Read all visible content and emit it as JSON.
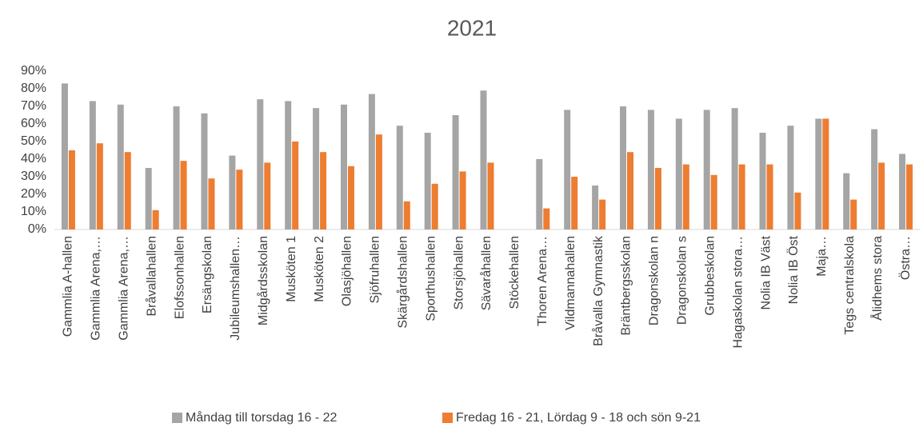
{
  "chart_data": {
    "type": "bar",
    "title": "2021",
    "categories": [
      "Gammlia A-hallen",
      "Gammlia Arena,…",
      "Gammlia Arena,…",
      "Bråvallahallen",
      "Elofssonhallen",
      "Ersängskolan",
      "Jubileumshallen…",
      "Midgårdsskolan",
      "Musköten 1",
      "Musköten 2",
      "Olasjöhallen",
      "Sjöfruhallen",
      "Skärgårdshallen",
      "Sporthushallen",
      "Storsjöhallen",
      "Sävaråhallen",
      "Stöckehallen",
      "Thoren Arena…",
      "Vildmannahallen",
      "Bråvalla Gymnastik",
      "Bräntbergsskolan",
      "Dragonskolan n",
      "Dragonskolan s",
      "Grubbeskolan",
      "Hagaskolan stora…",
      "Nolia IB Väst",
      "Nolia IB Öst",
      "Maja…",
      "Tegs centralskola",
      "Ålidhems stora",
      "Östra…"
    ],
    "series": [
      {
        "name": "Måndag till torsdag 16 - 22",
        "color": "#a5a5a5",
        "values": [
          83,
          73,
          71,
          35,
          70,
          66,
          42,
          74,
          73,
          69,
          71,
          77,
          59,
          55,
          65,
          79,
          null,
          40,
          68,
          25,
          70,
          68,
          63,
          68,
          69,
          55,
          59,
          63,
          32,
          57,
          43
        ]
      },
      {
        "name": "Fredag 16 - 21, Lördag 9 - 18 och sön 9-21",
        "color": "#ed7d31",
        "values": [
          45,
          49,
          44,
          11,
          39,
          29,
          34,
          38,
          50,
          44,
          36,
          54,
          16,
          26,
          33,
          38,
          null,
          12,
          30,
          17,
          44,
          35,
          37,
          31,
          37,
          37,
          21,
          63,
          17,
          38,
          37
        ]
      }
    ],
    "ylim": [
      0,
      90
    ],
    "yticks": [
      {
        "value": 0,
        "label": "0%"
      },
      {
        "value": 10,
        "label": "10%"
      },
      {
        "value": 20,
        "label": "20%"
      },
      {
        "value": 30,
        "label": "30%"
      },
      {
        "value": 40,
        "label": "40%"
      },
      {
        "value": 50,
        "label": "50%"
      },
      {
        "value": 60,
        "label": "60%"
      },
      {
        "value": 70,
        "label": "70%"
      },
      {
        "value": 80,
        "label": "80%"
      },
      {
        "value": 90,
        "label": "90%"
      }
    ],
    "grid": false,
    "legend": "bottom"
  }
}
